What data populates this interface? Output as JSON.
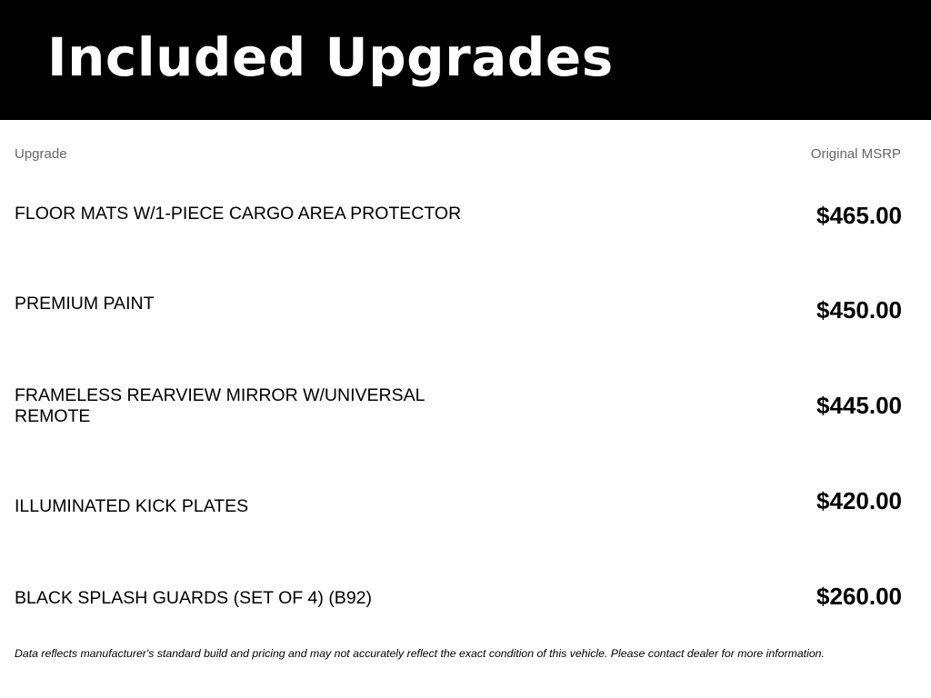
{
  "header": {
    "title": "Included Upgrades"
  },
  "columns": {
    "upgrade": "Upgrade",
    "msrp": "Original MSRP"
  },
  "upgrades": [
    {
      "name": "FLOOR MATS W/1-PIECE CARGO AREA PROTECTOR",
      "price": "$465.00"
    },
    {
      "name": "PREMIUM PAINT",
      "price": "$450.00"
    },
    {
      "name": "FRAMELESS REARVIEW MIRROR W/UNIVERSAL REMOTE",
      "price": "$445.00"
    },
    {
      "name": "ILLUMINATED KICK PLATES",
      "price": "$420.00"
    },
    {
      "name": "BLACK SPLASH GUARDS (SET OF 4) (B92)",
      "price": "$260.00"
    }
  ],
  "footer": {
    "disclaimer": "Data reflects manufacturer's standard build and pricing and may not accurately reflect the exact condition of this vehicle. Please contact dealer for more information."
  }
}
